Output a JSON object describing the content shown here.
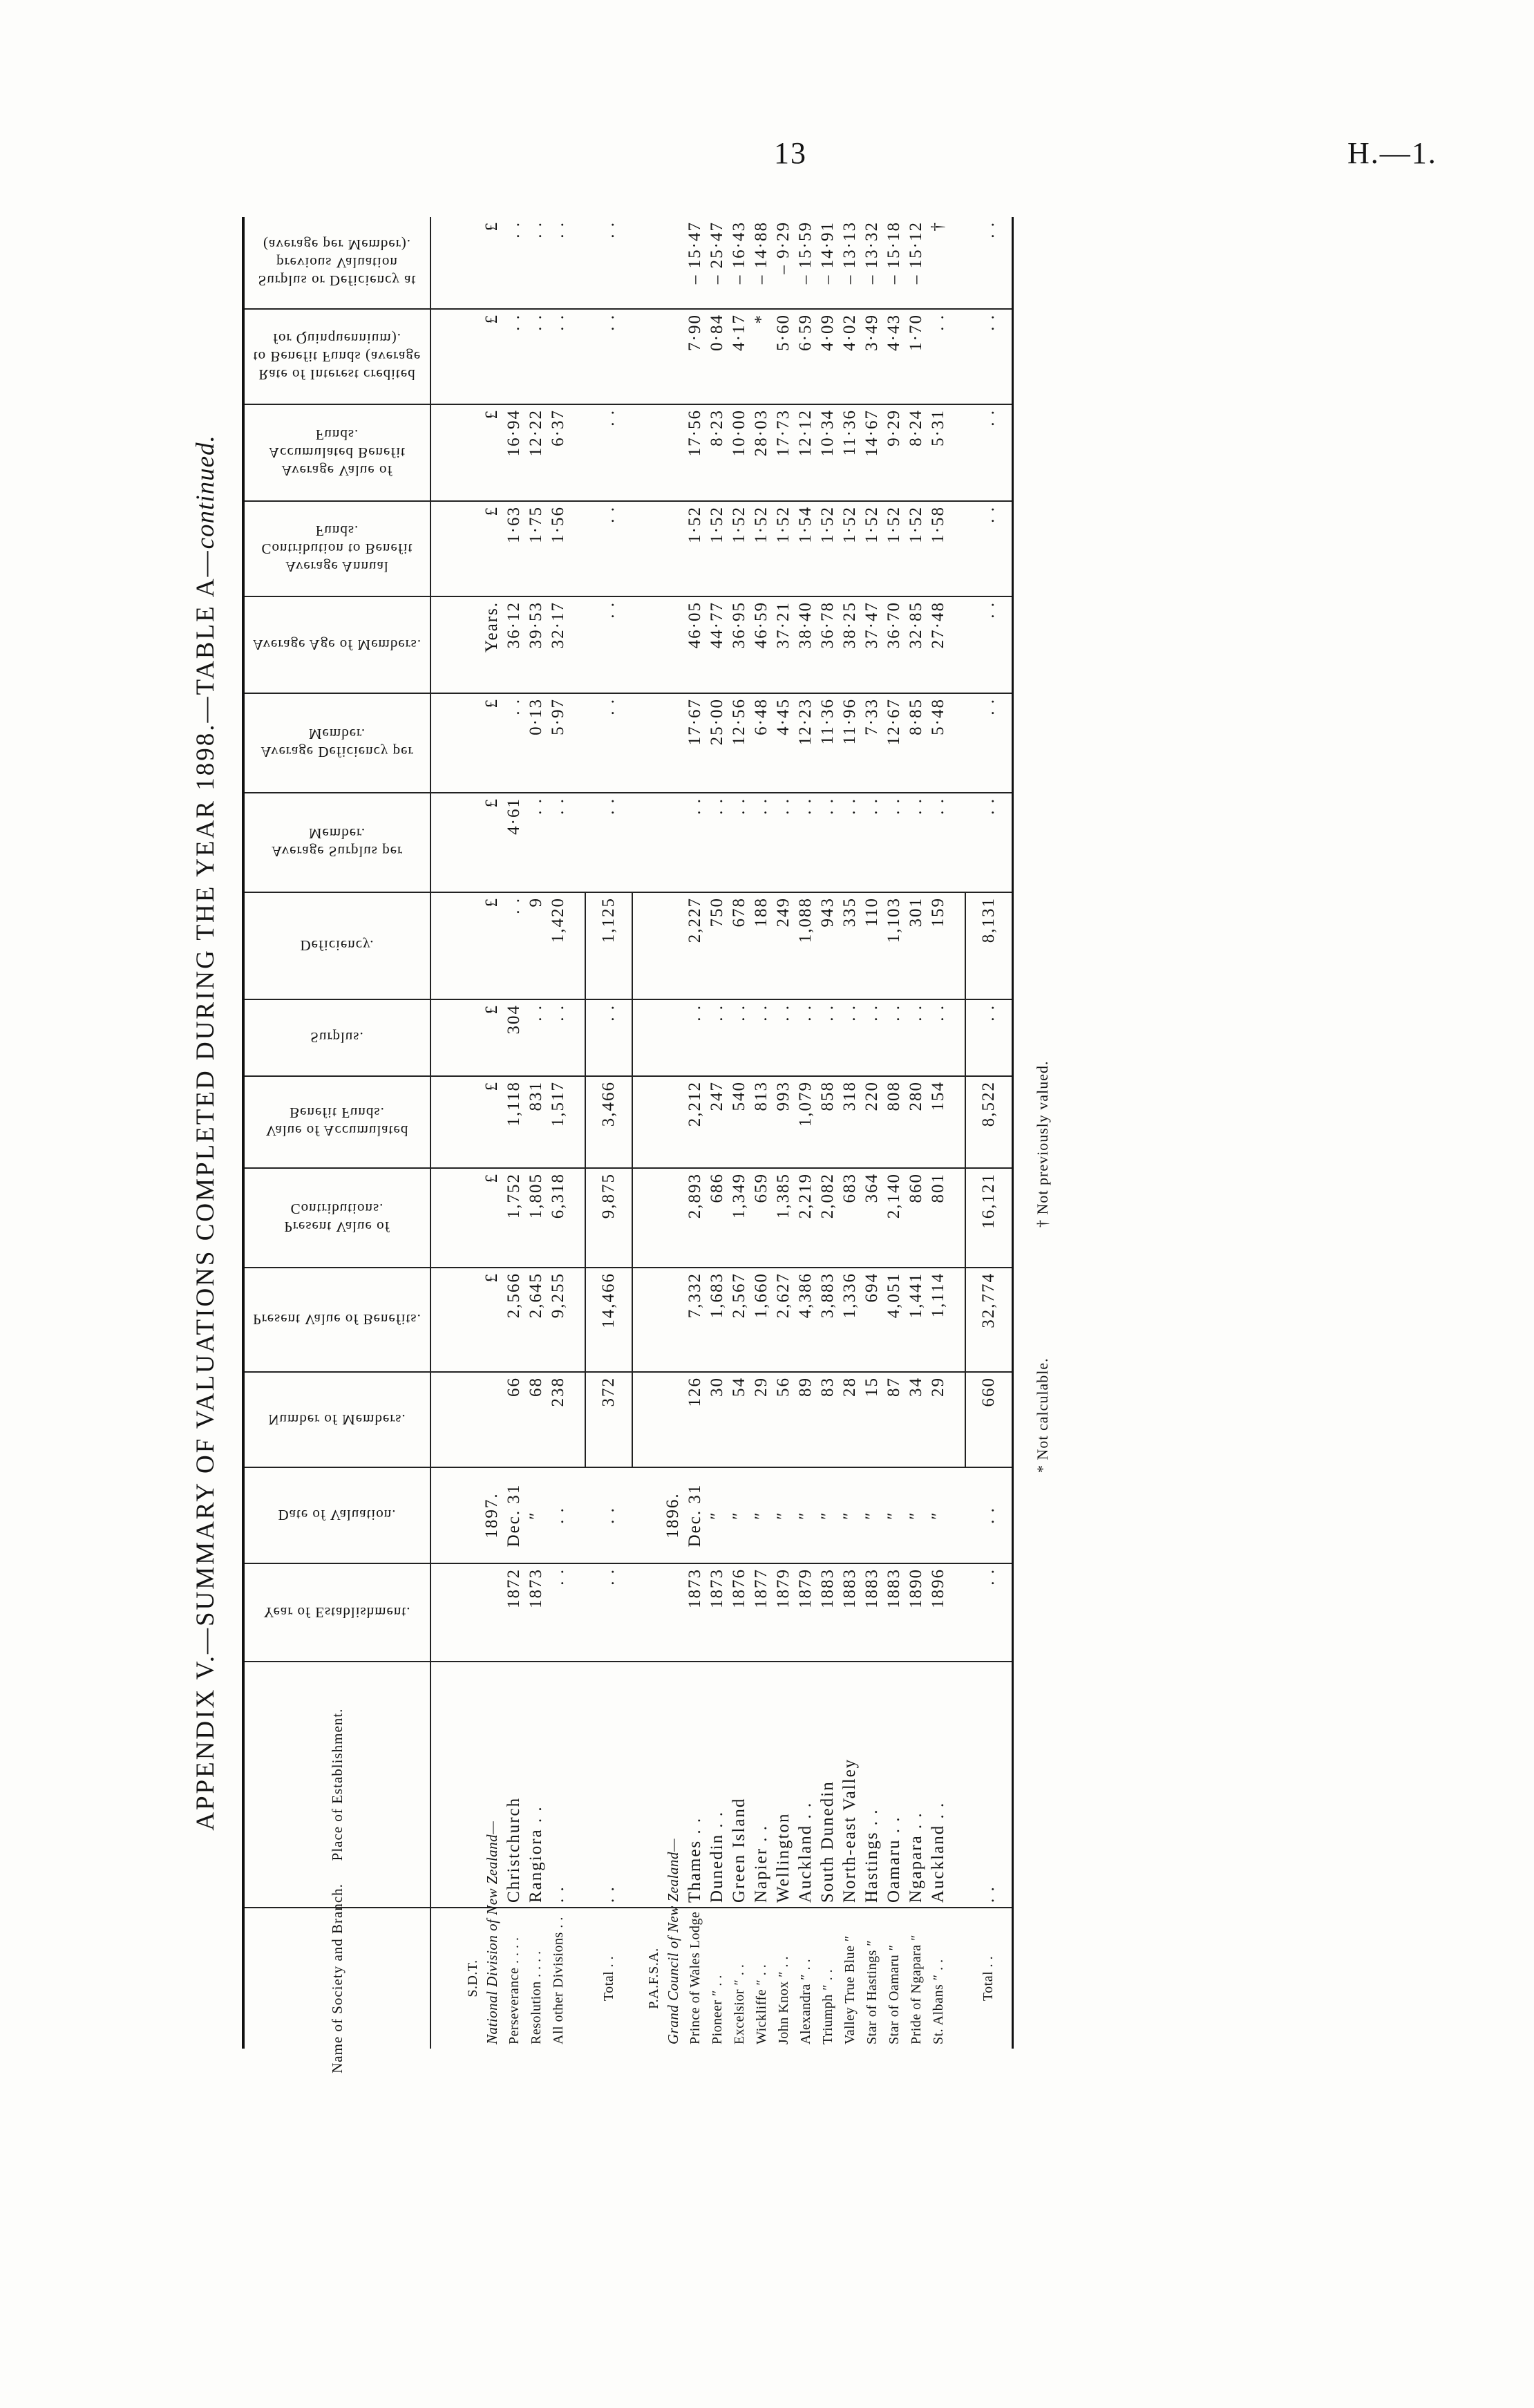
{
  "page": {
    "number": "13",
    "reference": "H.—1."
  },
  "title": {
    "main": "APPENDIX V.—SUMMARY OF VALUATIONS COMPLETED DURING THE YEAR 1898.—TABLE A—",
    "suffix": "continued."
  },
  "columns": [
    {
      "label": "Name of Society and Branch.",
      "orientation": "normal"
    },
    {
      "label": "Place of Establishment.",
      "orientation": "normal"
    },
    {
      "label": "Year of Establishment.",
      "orientation": "flipped"
    },
    {
      "label": "Date of Valuation.",
      "orientation": "flipped"
    },
    {
      "label": "Number of Members.",
      "orientation": "flipped"
    },
    {
      "label": "Present Value of Benefits.",
      "orientation": "flipped"
    },
    {
      "label": "Present Value of Contributions.",
      "orientation": "flipped"
    },
    {
      "label": "Value of Accumulated Benefit Funds.",
      "orientation": "flipped"
    },
    {
      "label": "Surplus.",
      "orientation": "flipped"
    },
    {
      "label": "Deficiency.",
      "orientation": "flipped"
    },
    {
      "label": "Average Surplus per Member.",
      "orientation": "flipped"
    },
    {
      "label": "Average Deficiency per Member.",
      "orientation": "flipped"
    },
    {
      "label": "Average Age of Members.",
      "orientation": "flipped"
    },
    {
      "label": "Average Annual Contribution to Benefit Funds.",
      "orientation": "flipped"
    },
    {
      "label": "Average Value of Accumulated Benefit Funds.",
      "orientation": "flipped"
    },
    {
      "label": "Rate of Interest credited to Benefit Funds (average for Quinquennium).",
      "orientation": "flipped"
    },
    {
      "label": "Surplus or Deficiency at previous Valuation (average per Member).",
      "orientation": "flipped"
    }
  ],
  "rows": [
    {
      "kind": "society",
      "cells": [
        "S.D.T.",
        "",
        "",
        "",
        "",
        "",
        "",
        "",
        "",
        "",
        "",
        "",
        "",
        "",
        "",
        "",
        ""
      ]
    },
    {
      "kind": "heading",
      "cells": [
        "National Division of New Zealand—",
        "",
        "",
        "1897.",
        "",
        "£",
        "£",
        "£",
        "£",
        "£",
        "£",
        "£",
        "Years.",
        "£",
        "£",
        "£",
        "£"
      ]
    },
    {
      "kind": "row",
      "cells": [
        "Perseverance  . .  . .",
        "Christchurch",
        "1872",
        "Dec. 31",
        "66",
        "2,566",
        "1,752",
        "1,118",
        "304",
        ". .",
        "4·61",
        ". .",
        "36·12",
        "1·63",
        "16·94",
        ". .",
        ". ."
      ]
    },
    {
      "kind": "row",
      "cells": [
        "Resolution  . .  . .",
        "Rangiora  . .",
        "1873",
        "″",
        "68",
        "2,645",
        "1,805",
        "831",
        ". .",
        "9",
        ". .",
        "0·13",
        "39·53",
        "1·75",
        "12·22",
        ". .",
        ". ."
      ]
    },
    {
      "kind": "row",
      "cells": [
        "All other Divisions . .",
        ". .",
        ". .",
        ". .",
        "238",
        "9,255",
        "6,318",
        "1,517",
        ". .",
        "1,420",
        ". .",
        "5·97",
        "32·17",
        "1·56",
        "6·37",
        ". .",
        ". ."
      ]
    },
    {
      "kind": "spacer",
      "cells": []
    },
    {
      "kind": "total",
      "cells": [
        "Total  . .",
        ". .",
        ". .",
        ". .",
        "372",
        "14,466",
        "9,875",
        "3,466",
        ". .",
        "1,125",
        ". .",
        ". .",
        ". .",
        ". .",
        ". .",
        ". .",
        ". ."
      ]
    },
    {
      "kind": "society",
      "cells": [
        "P.A.F.S.A.",
        "",
        "",
        "",
        "",
        "",
        "",
        "",
        "",
        "",
        "",
        "",
        "",
        "",
        "",
        "",
        ""
      ]
    },
    {
      "kind": "heading",
      "cells": [
        "Grand Council of New Zealand—",
        "",
        "",
        "1896.",
        "",
        "",
        "",
        "",
        "",
        "",
        "",
        "",
        "",
        "",
        "",
        "",
        ""
      ]
    },
    {
      "kind": "row",
      "cells": [
        "Prince of Wales Lodge",
        "Thames  . .",
        "1873",
        "Dec. 31",
        "126",
        "7,332",
        "2,893",
        "2,212",
        ". .",
        "2,227",
        ". .",
        "17·67",
        "46·05",
        "1·52",
        "17·56",
        "7·90",
        "– 15·47"
      ]
    },
    {
      "kind": "row",
      "cells": [
        "Pioneer  ″  . .",
        "Dunedin  . .",
        "1873",
        "″",
        "30",
        "1,683",
        "686",
        "247",
        ". .",
        "750",
        ". .",
        "25·00",
        "44·77",
        "1·52",
        "8·23",
        "0·84",
        "– 25·47"
      ]
    },
    {
      "kind": "row",
      "cells": [
        "Excelsior  ″  . .",
        "Green Island",
        "1876",
        "″",
        "54",
        "2,567",
        "1,349",
        "540",
        ". .",
        "678",
        ". .",
        "12·56",
        "36·95",
        "1·52",
        "10·00",
        "4·17",
        "– 16·43"
      ]
    },
    {
      "kind": "row",
      "cells": [
        "Wickliffe  ″  . .",
        "Napier  . .",
        "1877",
        "″",
        "29",
        "1,660",
        "659",
        "813",
        ". .",
        "188",
        ". .",
        "6·48",
        "46·59",
        "1·52",
        "28·03",
        "*",
        "– 14·88"
      ]
    },
    {
      "kind": "row",
      "cells": [
        "John Knox  ″  . .",
        "Wellington",
        "1879",
        "″",
        "56",
        "2,627",
        "1,385",
        "993",
        ". .",
        "249",
        ". .",
        "4·45",
        "37·21",
        "1·52",
        "17·73",
        "5·60",
        "– 9·29"
      ]
    },
    {
      "kind": "row",
      "cells": [
        "Alexandra  ″  . .",
        "Auckland  . .",
        "1879",
        "″",
        "89",
        "4,386",
        "2,219",
        "1,079",
        ". .",
        "1,088",
        ". .",
        "12·23",
        "38·40",
        "1·54",
        "12·12",
        "6·59",
        "– 15·59"
      ]
    },
    {
      "kind": "row",
      "cells": [
        "Triumph  ″  . .",
        "South Dunedin",
        "1883",
        "″",
        "83",
        "3,883",
        "2,082",
        "858",
        ". .",
        "943",
        ". .",
        "11·36",
        "36·78",
        "1·52",
        "10·34",
        "4·09",
        "– 14·91"
      ]
    },
    {
      "kind": "row",
      "cells": [
        "Valley True Blue  ″",
        "North-east Valley",
        "1883",
        "″",
        "28",
        "1,336",
        "683",
        "318",
        ". .",
        "335",
        ". .",
        "11·96",
        "38·25",
        "1·52",
        "11·36",
        "4·02",
        "– 13·13"
      ]
    },
    {
      "kind": "row",
      "cells": [
        "Star of Hastings  ″",
        "Hastings  . .",
        "1883",
        "″",
        "15",
        "694",
        "364",
        "220",
        ". .",
        "110",
        ". .",
        "7·33",
        "37·47",
        "1·52",
        "14·67",
        "3·49",
        "– 13·32"
      ]
    },
    {
      "kind": "row",
      "cells": [
        "Star of Oamaru  ″",
        "Oamaru  . .",
        "1883",
        "″",
        "87",
        "4,051",
        "2,140",
        "808",
        ". .",
        "1,103",
        ". .",
        "12·67",
        "36·70",
        "1·52",
        "9·29",
        "4·43",
        "– 15·18"
      ]
    },
    {
      "kind": "row",
      "cells": [
        "Pride of Ngapara  ″",
        "Ngapara  . .",
        "1890",
        "″",
        "34",
        "1,441",
        "860",
        "280",
        ". .",
        "301",
        ". .",
        "8·85",
        "32·85",
        "1·52",
        "8·24",
        "1·70",
        "– 15·12"
      ]
    },
    {
      "kind": "row",
      "cells": [
        "St. Albans  ″  . .",
        "Auckland  . .",
        "1896",
        "″",
        "29",
        "1,114",
        "801",
        "154",
        ". .",
        "159",
        ". .",
        "5·48",
        "27·48",
        "1·58",
        "5·31",
        ". .",
        "†"
      ]
    },
    {
      "kind": "spacer",
      "cells": []
    },
    {
      "kind": "total",
      "cells": [
        "Total  . .",
        ". .",
        ". .",
        ". .",
        "660",
        "32,774",
        "16,121",
        "8,522",
        ". .",
        "8,131",
        ". .",
        ". .",
        ". .",
        ". .",
        ". .",
        ". .",
        ". ."
      ]
    }
  ],
  "footnotes": {
    "not_calculable": "* Not calculable.",
    "not_previously_valued": "† Not previously valued."
  }
}
